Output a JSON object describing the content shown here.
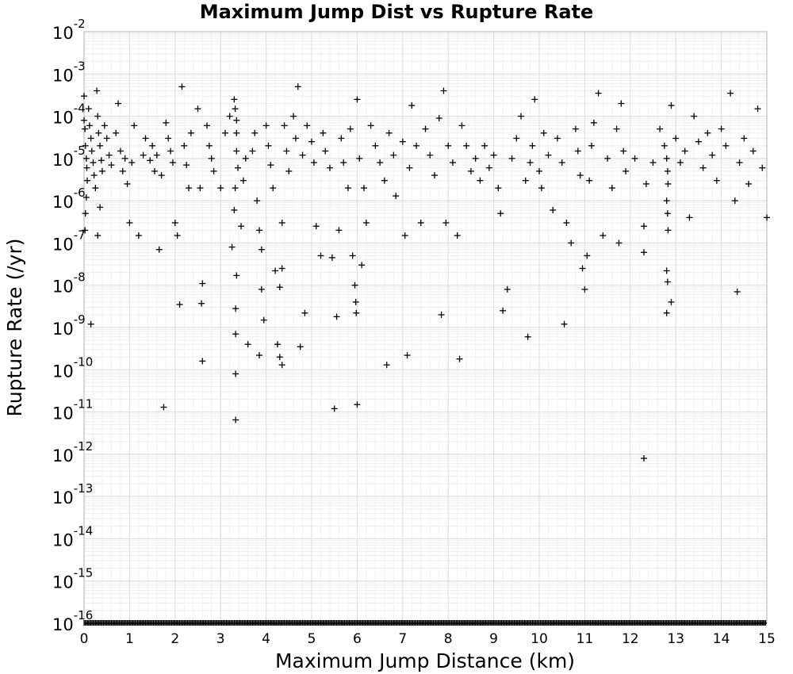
{
  "chart_data": {
    "type": "scatter",
    "title": "Maximum Jump Dist vs Rupture Rate",
    "xlabel": "Maximum Jump Distance (km)",
    "ylabel": "Rupture Rate (/yr)",
    "xlim": [
      0,
      15
    ],
    "ylim": [
      1e-16,
      0.01
    ],
    "yscale": "log",
    "grid": true,
    "marker": "plus",
    "marker_color": "#000000",
    "x_ticks": [
      "0",
      "1",
      "2",
      "3",
      "4",
      "5",
      "6",
      "7",
      "8",
      "9",
      "10",
      "11",
      "12",
      "13",
      "14",
      "15"
    ],
    "y_ticks": [
      {
        "base": "10",
        "exp": "-2"
      },
      {
        "base": "10",
        "exp": "-3"
      },
      {
        "base": "10",
        "exp": "-4"
      },
      {
        "base": "10",
        "exp": "-5"
      },
      {
        "base": "10",
        "exp": "-6"
      },
      {
        "base": "10",
        "exp": "-7"
      },
      {
        "base": "10",
        "exp": "-8"
      },
      {
        "base": "10",
        "exp": "-9"
      },
      {
        "base": "10",
        "exp": "-10"
      },
      {
        "base": "10",
        "exp": "-11"
      },
      {
        "base": "10",
        "exp": "-12"
      },
      {
        "base": "10",
        "exp": "-13"
      },
      {
        "base": "10",
        "exp": "-14"
      },
      {
        "base": "10",
        "exp": "-15"
      },
      {
        "base": "10",
        "exp": "-16"
      }
    ],
    "points": [
      [
        0.0,
        0.0003
      ],
      [
        0.0,
        8e-05
      ],
      [
        0.02,
        5e-05
      ],
      [
        0.03,
        2e-05
      ],
      [
        0.05,
        1e-05
      ],
      [
        0.06,
        6e-06
      ],
      [
        0.07,
        3e-06
      ],
      [
        0.05,
        1.2e-06
      ],
      [
        0.03,
        5e-07
      ],
      [
        0.02,
        2e-07
      ],
      [
        0.1,
        0.00015
      ],
      [
        0.12,
        6e-05
      ],
      [
        0.15,
        3e-05
      ],
      [
        0.17,
        1.5e-05
      ],
      [
        0.2,
        8e-06
      ],
      [
        0.22,
        4e-06
      ],
      [
        0.25,
        2e-06
      ],
      [
        0.15,
        1.2e-09
      ],
      [
        0.3,
        0.0001
      ],
      [
        0.32,
        4e-05
      ],
      [
        0.35,
        2e-05
      ],
      [
        0.38,
        9e-06
      ],
      [
        0.4,
        5e-06
      ],
      [
        0.35,
        7e-07
      ],
      [
        0.3,
        1.5e-07
      ],
      [
        0.28,
        0.0004
      ],
      [
        0.45,
        6e-05
      ],
      [
        0.5,
        3e-05
      ],
      [
        0.55,
        1.2e-05
      ],
      [
        0.6,
        7e-06
      ],
      [
        0.7,
        4e-05
      ],
      [
        0.75,
        0.0002
      ],
      [
        0.8,
        1.5e-05
      ],
      [
        0.85,
        5e-06
      ],
      [
        0.9,
        1e-05
      ],
      [
        0.95,
        2.5e-06
      ],
      [
        1.0,
        3e-07
      ],
      [
        1.05,
        8e-06
      ],
      [
        1.1,
        6e-05
      ],
      [
        1.2,
        1.5e-07
      ],
      [
        1.3,
        1.2e-05
      ],
      [
        1.35,
        3e-05
      ],
      [
        1.45,
        9e-06
      ],
      [
        1.5,
        2e-05
      ],
      [
        1.55,
        5e-06
      ],
      [
        1.6,
        1.2e-05
      ],
      [
        1.65,
        7e-08
      ],
      [
        1.7,
        4e-06
      ],
      [
        1.75,
        1.3e-11
      ],
      [
        1.8,
        7e-05
      ],
      [
        1.85,
        3e-05
      ],
      [
        1.9,
        1.5e-05
      ],
      [
        1.95,
        8e-06
      ],
      [
        2.0,
        3e-07
      ],
      [
        2.05,
        1.5e-07
      ],
      [
        2.1,
        3.5e-09
      ],
      [
        2.15,
        0.0005
      ],
      [
        2.2,
        2e-05
      ],
      [
        2.25,
        7e-06
      ],
      [
        2.3,
        2e-06
      ],
      [
        2.35,
        4e-05
      ],
      [
        2.5,
        0.00015
      ],
      [
        2.55,
        2e-06
      ],
      [
        2.6,
        1.1e-08
      ],
      [
        2.58,
        3.7e-09
      ],
      [
        2.6,
        1.6e-10
      ],
      [
        2.7,
        6e-05
      ],
      [
        2.75,
        2e-05
      ],
      [
        2.8,
        1e-05
      ],
      [
        2.85,
        5e-06
      ],
      [
        3.0,
        2e-06
      ],
      [
        3.1,
        4e-05
      ],
      [
        3.2,
        0.0001
      ],
      [
        3.25,
        8e-08
      ],
      [
        3.3,
        0.00025
      ],
      [
        3.32,
        0.00015
      ],
      [
        3.35,
        8e-05
      ],
      [
        3.35,
        4e-05
      ],
      [
        3.35,
        1.5e-05
      ],
      [
        3.38,
        6e-06
      ],
      [
        3.32,
        2e-06
      ],
      [
        3.3,
        6e-07
      ],
      [
        3.35,
        1.7e-08
      ],
      [
        3.33,
        2.8e-09
      ],
      [
        3.33,
        7e-10
      ],
      [
        3.33,
        8e-11
      ],
      [
        3.33,
        6.5e-12
      ],
      [
        3.45,
        2.5e-07
      ],
      [
        3.5,
        3e-06
      ],
      [
        3.55,
        1e-05
      ],
      [
        3.6,
        4e-10
      ],
      [
        3.7,
        1.5e-05
      ],
      [
        3.75,
        4e-05
      ],
      [
        3.85,
        2.2e-10
      ],
      [
        3.9,
        8e-09
      ],
      [
        3.95,
        1.5e-09
      ],
      [
        3.8,
        1e-06
      ],
      [
        3.85,
        2e-07
      ],
      [
        3.9,
        7e-08
      ],
      [
        4.0,
        6e-05
      ],
      [
        4.05,
        2e-05
      ],
      [
        4.1,
        7e-06
      ],
      [
        4.15,
        2e-06
      ],
      [
        4.2,
        2.2e-08
      ],
      [
        4.25,
        4e-10
      ],
      [
        4.3,
        2e-10
      ],
      [
        4.35,
        1.3e-10
      ],
      [
        4.3,
        9e-09
      ],
      [
        4.35,
        2.5e-08
      ],
      [
        4.35,
        3e-07
      ],
      [
        4.4,
        6e-05
      ],
      [
        4.45,
        1.5e-05
      ],
      [
        4.5,
        5e-06
      ],
      [
        4.6,
        0.0001
      ],
      [
        4.65,
        3e-05
      ],
      [
        4.7,
        0.0005
      ],
      [
        4.75,
        3.5e-10
      ],
      [
        4.8,
        1.2e-05
      ],
      [
        4.85,
        2.2e-09
      ],
      [
        4.9,
        6e-05
      ],
      [
        5.0,
        2.5e-05
      ],
      [
        5.05,
        8e-06
      ],
      [
        5.1,
        2.5e-07
      ],
      [
        5.2,
        5e-08
      ],
      [
        5.25,
        4e-05
      ],
      [
        5.3,
        1.5e-05
      ],
      [
        5.4,
        6e-06
      ],
      [
        5.45,
        4.5e-08
      ],
      [
        5.5,
        1.2e-11
      ],
      [
        5.55,
        1.8e-09
      ],
      [
        5.6,
        2e-07
      ],
      [
        5.65,
        3e-05
      ],
      [
        5.7,
        8e-06
      ],
      [
        5.8,
        2e-06
      ],
      [
        5.85,
        5e-05
      ],
      [
        5.9,
        5e-08
      ],
      [
        5.95,
        1e-08
      ],
      [
        5.97,
        4e-09
      ],
      [
        5.98,
        2.2e-09
      ],
      [
        6.0,
        1.5e-11
      ],
      [
        6.0,
        0.00025
      ],
      [
        6.05,
        1e-05
      ],
      [
        6.1,
        3e-08
      ],
      [
        6.15,
        2e-06
      ],
      [
        6.2,
        3e-07
      ],
      [
        6.3,
        6e-05
      ],
      [
        6.4,
        2e-05
      ],
      [
        6.5,
        8e-06
      ],
      [
        6.6,
        3e-06
      ],
      [
        6.65,
        1.3e-10
      ],
      [
        6.7,
        4e-05
      ],
      [
        6.8,
        1.2e-05
      ],
      [
        6.85,
        1.3e-06
      ],
      [
        7.0,
        2.5e-05
      ],
      [
        7.05,
        1.5e-07
      ],
      [
        7.1,
        2.2e-10
      ],
      [
        7.15,
        6e-06
      ],
      [
        7.2,
        0.00018
      ],
      [
        7.3,
        2e-05
      ],
      [
        7.4,
        3e-07
      ],
      [
        7.5,
        5e-05
      ],
      [
        7.6,
        1.2e-05
      ],
      [
        7.7,
        4e-06
      ],
      [
        7.8,
        9e-05
      ],
      [
        7.85,
        2e-09
      ],
      [
        7.9,
        0.0004
      ],
      [
        7.95,
        3e-07
      ],
      [
        8.0,
        2e-05
      ],
      [
        8.1,
        8e-06
      ],
      [
        8.2,
        1.5e-07
      ],
      [
        8.25,
        1.8e-10
      ],
      [
        8.3,
        6e-05
      ],
      [
        8.4,
        2e-05
      ],
      [
        8.5,
        5e-06
      ],
      [
        8.6,
        1e-05
      ],
      [
        8.7,
        3e-06
      ],
      [
        8.8,
        2e-05
      ],
      [
        8.9,
        6e-06
      ],
      [
        9.0,
        1.2e-05
      ],
      [
        9.1,
        2e-06
      ],
      [
        9.15,
        5e-07
      ],
      [
        9.2,
        2.5e-09
      ],
      [
        9.3,
        8e-09
      ],
      [
        9.4,
        1e-05
      ],
      [
        9.5,
        3e-05
      ],
      [
        9.6,
        0.0001
      ],
      [
        9.7,
        3e-06
      ],
      [
        9.75,
        6e-10
      ],
      [
        9.8,
        8e-06
      ],
      [
        9.85,
        2e-05
      ],
      [
        9.9,
        0.00025
      ],
      [
        10.0,
        5e-06
      ],
      [
        10.05,
        2e-06
      ],
      [
        10.1,
        4e-05
      ],
      [
        10.2,
        1.2e-05
      ],
      [
        10.3,
        6e-07
      ],
      [
        10.4,
        3e-05
      ],
      [
        10.5,
        8e-06
      ],
      [
        10.55,
        1.2e-09
      ],
      [
        10.6,
        3e-07
      ],
      [
        10.7,
        1e-07
      ],
      [
        10.8,
        5e-05
      ],
      [
        10.85,
        1.5e-05
      ],
      [
        10.9,
        4e-06
      ],
      [
        10.95,
        2.5e-08
      ],
      [
        11.0,
        8e-09
      ],
      [
        11.05,
        5e-08
      ],
      [
        11.1,
        3e-06
      ],
      [
        11.15,
        2e-05
      ],
      [
        11.2,
        7e-05
      ],
      [
        11.3,
        0.00035
      ],
      [
        11.4,
        1.5e-07
      ],
      [
        11.5,
        1e-05
      ],
      [
        11.6,
        2e-06
      ],
      [
        11.7,
        5e-05
      ],
      [
        11.75,
        1e-07
      ],
      [
        11.8,
        0.0002
      ],
      [
        11.85,
        1.5e-05
      ],
      [
        11.9,
        5e-06
      ],
      [
        12.1,
        1e-05
      ],
      [
        12.3,
        2.5e-07
      ],
      [
        12.3,
        6e-08
      ],
      [
        12.3,
        8e-13
      ],
      [
        12.35,
        2.5e-06
      ],
      [
        12.5,
        8e-06
      ],
      [
        12.65,
        5e-05
      ],
      [
        12.75,
        2e-05
      ],
      [
        12.8,
        1e-05
      ],
      [
        12.82,
        5e-06
      ],
      [
        12.83,
        2.5e-06
      ],
      [
        12.8,
        1e-06
      ],
      [
        12.82,
        5e-07
      ],
      [
        12.83,
        2e-07
      ],
      [
        12.8,
        2.2e-08
      ],
      [
        12.82,
        1.2e-08
      ],
      [
        12.8,
        2.2e-09
      ],
      [
        12.9,
        4e-09
      ],
      [
        12.9,
        0.00018
      ],
      [
        13.0,
        3e-05
      ],
      [
        13.1,
        8e-06
      ],
      [
        13.2,
        1.5e-05
      ],
      [
        13.3,
        4e-07
      ],
      [
        13.4,
        0.0001
      ],
      [
        13.5,
        2.5e-05
      ],
      [
        13.6,
        6e-06
      ],
      [
        13.7,
        4e-05
      ],
      [
        13.8,
        1.2e-05
      ],
      [
        13.9,
        3e-06
      ],
      [
        14.0,
        5e-05
      ],
      [
        14.1,
        2e-05
      ],
      [
        14.2,
        0.00035
      ],
      [
        14.3,
        1e-06
      ],
      [
        14.35,
        7e-09
      ],
      [
        14.4,
        8e-06
      ],
      [
        14.5,
        3e-05
      ],
      [
        14.6,
        2.5e-06
      ],
      [
        14.7,
        1.5e-05
      ],
      [
        14.8,
        0.00015
      ],
      [
        14.9,
        6e-06
      ],
      [
        15.0,
        4e-07
      ]
    ],
    "floor_band": {
      "value": 1e-16,
      "x_range": [
        0,
        15
      ],
      "note": "dense row of markers at 10^-16"
    }
  }
}
